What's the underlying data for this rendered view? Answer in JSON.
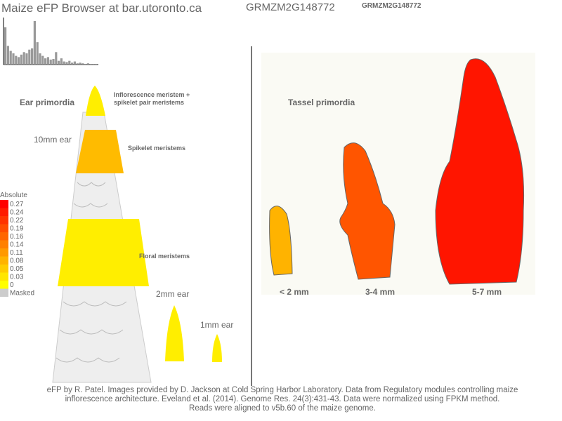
{
  "header": {
    "title": "Maize eFP Browser at bar.utoronto.ca",
    "gene": "GRMZM2G148772",
    "gene_small": "GRMZM2G148772"
  },
  "histogram": {
    "color": "#999999",
    "values": [
      60,
      30,
      22,
      18,
      14,
      12,
      16,
      20,
      18,
      24,
      26,
      70,
      36,
      18,
      14,
      10,
      12,
      8,
      9,
      20,
      6,
      10,
      5,
      4,
      6,
      3,
      5,
      2,
      3,
      2,
      1,
      2,
      1,
      1,
      1
    ]
  },
  "legend": {
    "title": "Absolute",
    "entries": [
      {
        "label": 0.27,
        "color": "#ff0000"
      },
      {
        "label": 0.24,
        "color": "#ff1a00"
      },
      {
        "label": 0.22,
        "color": "#ff3300"
      },
      {
        "label": 0.19,
        "color": "#ff4d00"
      },
      {
        "label": 0.16,
        "color": "#ff6600"
      },
      {
        "label": 0.14,
        "color": "#ff8000"
      },
      {
        "label": 0.11,
        "color": "#ff9900"
      },
      {
        "label": 0.08,
        "color": "#ffb300"
      },
      {
        "label": 0.05,
        "color": "#ffcc00"
      },
      {
        "label": 0.03,
        "color": "#ffe600"
      },
      {
        "label": 0,
        "color": "#ffff00"
      },
      {
        "label": "Masked",
        "color": "#cccccc"
      }
    ]
  },
  "ear": {
    "title": "Ear primordia",
    "stage_label": "10mm ear",
    "regions": [
      {
        "label": [
          "Inflorescence meristem +",
          "spikelet pair meristems"
        ],
        "color": "#ffee00"
      },
      {
        "label": [
          "Spikelet meristems"
        ],
        "color": "#ffbb00"
      },
      {
        "label": [
          "Floral meristems"
        ],
        "color": "#ffee00"
      }
    ],
    "small": [
      {
        "label": "2mm ear",
        "color": "#ffee00"
      },
      {
        "label": "1mm ear",
        "color": "#ffee00"
      }
    ]
  },
  "tassel": {
    "title": "Tassel primordia",
    "stages": [
      {
        "label": "< 2 mm",
        "color": "#ffb300"
      },
      {
        "label": "3-4 mm",
        "color": "#ff5500"
      },
      {
        "label": "5-7 mm",
        "color": "#ff1500"
      }
    ]
  },
  "footer": [
    "eFP by R. Patel. Images provided by D. Jackson at Cold Spring Harbor Laboratory. Data from Regulatory modules controlling maize",
    "inflorescence architecture. Eveland et al. (2014). Genome Res. 24(3):431-43. Data were normalized using FPKM method.",
    "Reads were aligned to v5b.60 of the maize genome."
  ]
}
